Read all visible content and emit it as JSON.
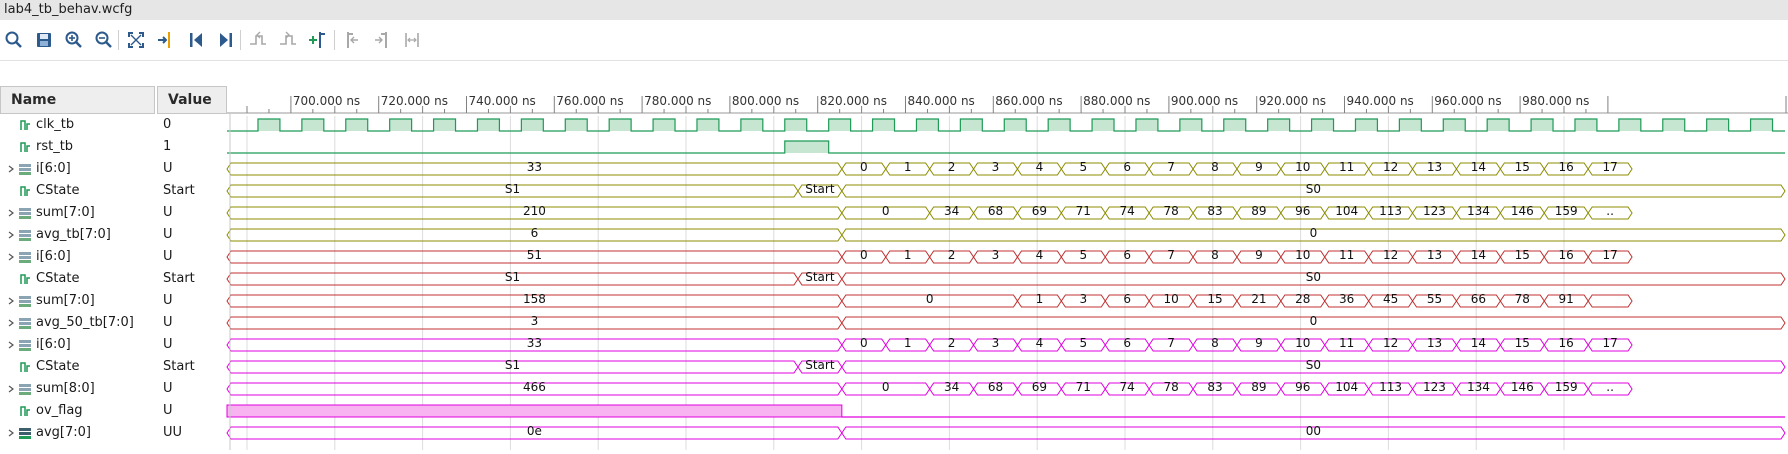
{
  "window": {
    "title": "lab4_tb_behav.wcfg"
  },
  "toolbar": {
    "buttons": [
      {
        "name": "search-icon",
        "enabled": true
      },
      {
        "name": "save-icon",
        "enabled": true
      },
      {
        "name": "zoom-in-icon",
        "enabled": true
      },
      {
        "name": "zoom-out-icon",
        "enabled": true
      },
      {
        "name": "zoom-fit-icon",
        "enabled": true
      },
      {
        "name": "go-to-cursor-icon",
        "enabled": true
      },
      {
        "name": "go-to-time-0-icon",
        "enabled": true
      },
      {
        "name": "go-to-last-time-icon",
        "enabled": true
      },
      {
        "name": "previous-transition-icon",
        "enabled": false
      },
      {
        "name": "next-transition-icon",
        "enabled": false
      },
      {
        "name": "add-marker-icon",
        "enabled": true
      },
      {
        "name": "previous-marker-icon",
        "enabled": false
      },
      {
        "name": "next-marker-icon",
        "enabled": false
      },
      {
        "name": "swap-cursors-icon",
        "enabled": false
      }
    ]
  },
  "columns": {
    "name": "Name",
    "value": "Value"
  },
  "time_axis": {
    "ticks": [
      "700.000 ns",
      "720.000 ns",
      "740.000 ns",
      "760.000 ns",
      "780.000 ns",
      "800.000 ns",
      "820.000 ns",
      "840.000 ns",
      "860.000 ns",
      "880.000 ns",
      "900.000 ns",
      "920.000 ns",
      "940.000 ns",
      "960.000 ns",
      "980.000 ns"
    ]
  },
  "colors": {
    "green": "#1f9a57",
    "green_fill": "#c6e6d2",
    "olive": "#8c8c00",
    "red": "#c03030",
    "magenta": "#e000e0",
    "magenta_fill": "#f7b4f0"
  },
  "signals": [
    {
      "name": "clk_tb",
      "value": "0",
      "kind": "bit",
      "expand": false,
      "icon": "bit-signal-icon",
      "color": "green"
    },
    {
      "name": "rst_tb",
      "value": "1",
      "kind": "bit",
      "expand": false,
      "icon": "bit-signal-icon",
      "color": "green"
    },
    {
      "name": "i[6:0]",
      "value": "U",
      "kind": "bus",
      "expand": true,
      "icon": "bus-signal-icon",
      "color": "olive",
      "pre": [
        "33"
      ],
      "post": [
        "0",
        "1",
        "2",
        "3",
        "4",
        "5",
        "6",
        "7",
        "8",
        "9",
        "10",
        "11",
        "12",
        "13",
        "14",
        "15",
        "16",
        "17"
      ]
    },
    {
      "name": "CState",
      "value": "Start",
      "kind": "state",
      "expand": false,
      "icon": "bit-signal-icon",
      "color": "olive",
      "pre": [
        "S1",
        "Start"
      ],
      "post": [
        "S0"
      ]
    },
    {
      "name": "sum[7:0]",
      "value": "U",
      "kind": "bus",
      "expand": true,
      "icon": "bus-signal-icon",
      "color": "olive",
      "pre": [
        "210"
      ],
      "post": [
        "0",
        "34",
        "68",
        "69",
        "71",
        "74",
        "78",
        "83",
        "89",
        "96",
        "104",
        "113",
        "123",
        "134",
        "146",
        "159",
        ".."
      ]
    },
    {
      "name": "avg_tb[7:0]",
      "value": "U",
      "kind": "bus",
      "expand": true,
      "icon": "bus-signal-icon",
      "color": "olive",
      "pre": [
        "6"
      ],
      "post": [
        "0"
      ]
    },
    {
      "name": "i[6:0]",
      "value": "U",
      "kind": "bus",
      "expand": true,
      "icon": "bus-signal-icon",
      "color": "red",
      "pre": [
        "51"
      ],
      "post": [
        "0",
        "1",
        "2",
        "3",
        "4",
        "5",
        "6",
        "7",
        "8",
        "9",
        "10",
        "11",
        "12",
        "13",
        "14",
        "15",
        "16",
        "17"
      ]
    },
    {
      "name": "CState",
      "value": "Start",
      "kind": "state",
      "expand": false,
      "icon": "bit-signal-icon",
      "color": "red",
      "pre": [
        "S1",
        "Start"
      ],
      "post": [
        "S0"
      ]
    },
    {
      "name": "sum[7:0]",
      "value": "U",
      "kind": "bus",
      "expand": true,
      "icon": "bus-signal-icon",
      "color": "red",
      "pre": [
        "158"
      ],
      "post": [
        "0",
        "1",
        "3",
        "6",
        "10",
        "15",
        "21",
        "28",
        "36",
        "45",
        "55",
        "66",
        "78",
        "91",
        ""
      ]
    },
    {
      "name": "avg_50_tb[7:0]",
      "value": "U",
      "kind": "bus",
      "expand": true,
      "icon": "bus-signal-icon",
      "color": "red",
      "pre": [
        "3"
      ],
      "post": [
        "0"
      ]
    },
    {
      "name": "i[6:0]",
      "value": "U",
      "kind": "bus",
      "expand": true,
      "icon": "bus-signal-icon",
      "color": "magenta",
      "pre": [
        "33"
      ],
      "post": [
        "0",
        "1",
        "2",
        "3",
        "4",
        "5",
        "6",
        "7",
        "8",
        "9",
        "10",
        "11",
        "12",
        "13",
        "14",
        "15",
        "16",
        "17"
      ]
    },
    {
      "name": "CState",
      "value": "Start",
      "kind": "state",
      "expand": false,
      "icon": "bit-signal-icon",
      "color": "magenta",
      "pre": [
        "S1",
        "Start"
      ],
      "post": [
        "S0"
      ]
    },
    {
      "name": "sum[8:0]",
      "value": "U",
      "kind": "bus",
      "expand": true,
      "icon": "bus-signal-icon",
      "color": "magenta",
      "pre": [
        "466"
      ],
      "post": [
        "0",
        "34",
        "68",
        "69",
        "71",
        "74",
        "78",
        "83",
        "89",
        "96",
        "104",
        "113",
        "123",
        "134",
        "146",
        "159",
        ".."
      ]
    },
    {
      "name": "ov_flag",
      "value": "U",
      "kind": "flag",
      "expand": false,
      "icon": "bit-signal-icon",
      "color": "magenta"
    },
    {
      "name": "avg[7:0]",
      "value": "UU",
      "kind": "bus",
      "expand": true,
      "icon": "bus-signal-dark-icon",
      "color": "magenta",
      "pre": [
        "0e"
      ],
      "post": [
        "00"
      ]
    }
  ]
}
